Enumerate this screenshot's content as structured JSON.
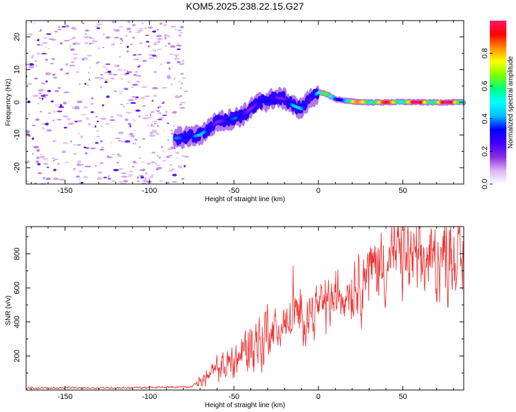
{
  "title": "KOM5.2025.238.22.15.G27",
  "chart_data": [
    {
      "type": "heatmap",
      "title": "KOM5.2025.238.22.15.G27",
      "xlabel": "Height of straight line (km)",
      "ylabel": "Frequency (Hz)",
      "xlim": [
        -173,
        86
      ],
      "ylim": [
        -25,
        25
      ],
      "xticks": [
        -150,
        -100,
        -50,
        0,
        50
      ],
      "yticks": [
        -20,
        -10,
        0,
        10,
        20
      ],
      "colorbar": {
        "label": "Normalized spectral amplitude",
        "range": [
          0,
          1
        ],
        "ticks": [
          0.0,
          0.2,
          0.4,
          0.6,
          0.8
        ],
        "colors": [
          "#ffffff",
          "#d9b3f2",
          "#8a2be2",
          "#3f00ff",
          "#0000ff",
          "#00bfff",
          "#00ffff",
          "#00ff7f",
          "#7fff00",
          "#ffff00",
          "#ff8c00",
          "#ff0000",
          "#ff1a6e"
        ]
      },
      "ridge_x_km": [
        -85,
        -75,
        -70,
        -65,
        -60,
        -55,
        -50,
        -45,
        -40,
        -35,
        -30,
        -25,
        -20,
        -15,
        -10,
        -5,
        0,
        5,
        10,
        20,
        30,
        40,
        50,
        60,
        70,
        86
      ],
      "ridge_freq_hz": [
        -11,
        -10.5,
        -10,
        -8,
        -6,
        -5.5,
        -5,
        -4,
        -2,
        0,
        0.5,
        1.5,
        1,
        -1,
        -2,
        1,
        3,
        2.5,
        1,
        0.2,
        0,
        0,
        0.1,
        0,
        0,
        0
      ],
      "ridge_amplitude": [
        0.35,
        0.55,
        0.45,
        0.3,
        0.3,
        0.35,
        0.35,
        0.35,
        0.3,
        0.3,
        0.3,
        0.35,
        0.3,
        0.4,
        0.45,
        0.4,
        0.6,
        0.6,
        0.5,
        0.7,
        0.95,
        0.85,
        0.9,
        0.95,
        0.95,
        0.95
      ]
    },
    {
      "type": "line",
      "xlabel": "Height of straight line (km)",
      "ylabel": "SNR (v/v)",
      "xlim": [
        -173,
        86
      ],
      "ylim": [
        0,
        960
      ],
      "xticks": [
        -150,
        -100,
        -50,
        0,
        50
      ],
      "yticks": [
        200,
        400,
        600,
        800
      ],
      "color": "#ee3333",
      "trend_x_km": [
        -173,
        -100,
        -75,
        -70,
        -60,
        -50,
        -40,
        -30,
        -20,
        -10,
        0,
        10,
        20,
        30,
        40,
        45,
        50,
        60,
        70,
        80,
        86
      ],
      "trend_snr": [
        12,
        14,
        20,
        60,
        110,
        180,
        260,
        330,
        380,
        430,
        480,
        540,
        620,
        700,
        760,
        800,
        780,
        740,
        780,
        800,
        760
      ],
      "peaks": [
        {
          "x_km": -15,
          "snr": 730
        },
        {
          "x_km": 45,
          "snr": 950
        },
        {
          "x_km": 78,
          "snr": 930
        }
      ]
    }
  ]
}
